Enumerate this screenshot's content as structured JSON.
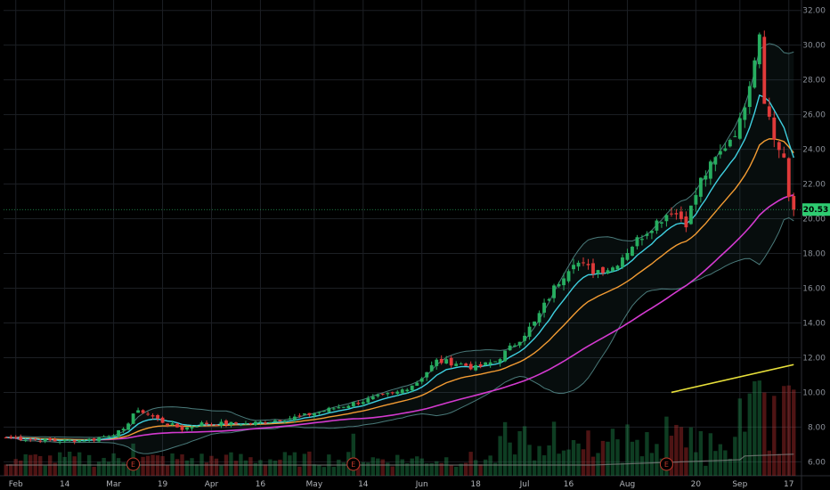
{
  "chart_data": {
    "type": "candlestick",
    "ylim": [
      5.2,
      32.6
    ],
    "y_ticks": [
      6,
      8,
      10,
      12,
      14,
      16,
      18,
      20,
      22,
      24,
      26,
      28,
      30,
      32
    ],
    "y_tick_labels": [
      "6.00",
      "8.00",
      "10.00",
      "12.00",
      "14.00",
      "16.00",
      "18.00",
      "20.00",
      "22.00",
      "24.00",
      "26.00",
      "28.00",
      "30.00",
      "32.00"
    ],
    "x_ticks": [
      {
        "label": "Feb",
        "index": 2
      },
      {
        "label": "14",
        "index": 12
      },
      {
        "label": "Mar",
        "index": 22
      },
      {
        "label": "19",
        "index": 32
      },
      {
        "label": "Apr",
        "index": 42
      },
      {
        "label": "16",
        "index": 52
      },
      {
        "label": "May",
        "index": 63
      },
      {
        "label": "14",
        "index": 73
      },
      {
        "label": "Jun",
        "index": 85
      },
      {
        "label": "18",
        "index": 96
      },
      {
        "label": "Jul",
        "index": 106
      },
      {
        "label": "16",
        "index": 115
      },
      {
        "label": "Aug",
        "index": 127
      },
      {
        "label": "20",
        "index": 141
      },
      {
        "label": "Sep",
        "index": 150
      },
      {
        "label": "17",
        "index": 160
      }
    ],
    "last_price": 20.53,
    "last_price_label": "20.53",
    "earnings_markers": [
      {
        "label": "E",
        "index": 26
      },
      {
        "label": "E",
        "index": 71
      },
      {
        "label": "E",
        "index": 135
      }
    ],
    "colors": {
      "up": "#27ae60",
      "down": "#e03a3a",
      "ema_fast": "#3fd0e0",
      "ema_mid": "#f39c33",
      "sma_slow": "#d43ad0",
      "sma_long": "#e8e03a",
      "bands": "#4a7a7a",
      "volume_ma": "#888888",
      "price_tag": "#2ecc71"
    },
    "anchors": [
      [
        0,
        7.4
      ],
      [
        10,
        7.2
      ],
      [
        18,
        7.3
      ],
      [
        24,
        7.8
      ],
      [
        26,
        8.8
      ],
      [
        28,
        8.9
      ],
      [
        32,
        8.3
      ],
      [
        36,
        7.9
      ],
      [
        40,
        8.2
      ],
      [
        50,
        8.2
      ],
      [
        60,
        8.6
      ],
      [
        70,
        9.3
      ],
      [
        80,
        10.0
      ],
      [
        84,
        10.6
      ],
      [
        88,
        11.8
      ],
      [
        92,
        11.7
      ],
      [
        96,
        11.4
      ],
      [
        100,
        11.8
      ],
      [
        104,
        12.8
      ],
      [
        108,
        14.0
      ],
      [
        112,
        16.0
      ],
      [
        116,
        17.6
      ],
      [
        120,
        17.0
      ],
      [
        124,
        17.2
      ],
      [
        128,
        18.5
      ],
      [
        132,
        19.6
      ],
      [
        136,
        20.5
      ],
      [
        139,
        19.8
      ],
      [
        142,
        22.2
      ],
      [
        146,
        23.8
      ],
      [
        150,
        25.5
      ],
      [
        152,
        28.0
      ],
      [
        154,
        30.8
      ],
      [
        155,
        27.0
      ],
      [
        157,
        24.6
      ],
      [
        159,
        23.5
      ],
      [
        160,
        21.0
      ],
      [
        161,
        20.53
      ]
    ]
  }
}
